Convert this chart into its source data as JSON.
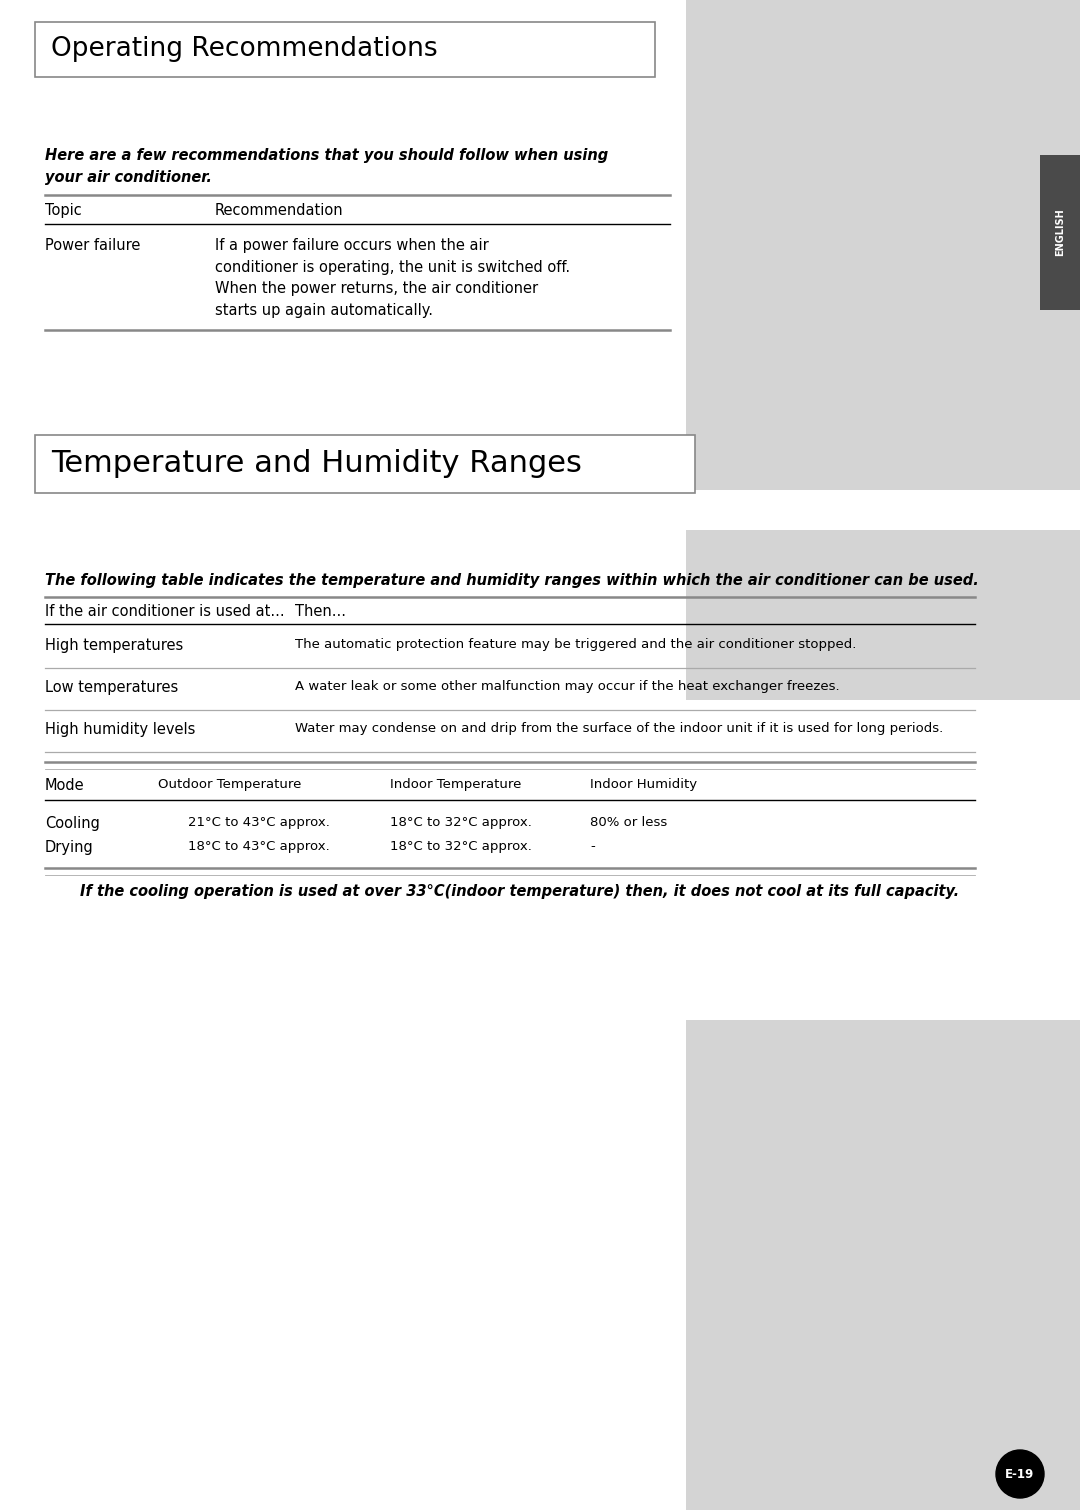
{
  "page_bg": "#ffffff",
  "right_panel_bg": "#d4d4d4",
  "sidebar_bg": "#4a4a4a",
  "sidebar_text": "ENGLISH",
  "section1_title": "Operating Recommendations",
  "section2_title": "Temperature and Humidity Ranges",
  "section1_intro": "Here are a few recommendations that you should follow when using\nyour air conditioner.",
  "section2_intro": "The following table indicates the temperature and humidity ranges within which the air conditioner can be used.",
  "rec_row1_label": "Power failure",
  "rec_row1_text": "If a power failure occurs when the air\nconditioner is operating, the unit is switched off.\nWhen the power returns, the air conditioner\nstarts up again automatically.",
  "thr_rows": [
    {
      "label": "High temperatures",
      "text": "The automatic protection feature may be triggered and the air conditioner stopped."
    },
    {
      "label": "Low temperatures",
      "text": "A water leak or some other malfunction may occur if the heat exchanger freezes."
    },
    {
      "label": "High humidity levels",
      "text": "Water may condense on and drip from the surface of the indoor unit if it is used for long periods."
    }
  ],
  "mode_rows": [
    {
      "mode": "Cooling",
      "outdoor": "21°C to 43°C approx.",
      "indoor": "18°C to 32°C approx.",
      "humidity": "80% or less"
    },
    {
      "mode": "Drying",
      "outdoor": "18°C to 43°C approx.",
      "indoor": "18°C to 32°C approx.",
      "humidity": "-"
    }
  ],
  "footnote": "If the cooling operation is used at over 33°C(indoor temperature) then, it does not cool at its full capacity.",
  "page_num_text": "E-19"
}
